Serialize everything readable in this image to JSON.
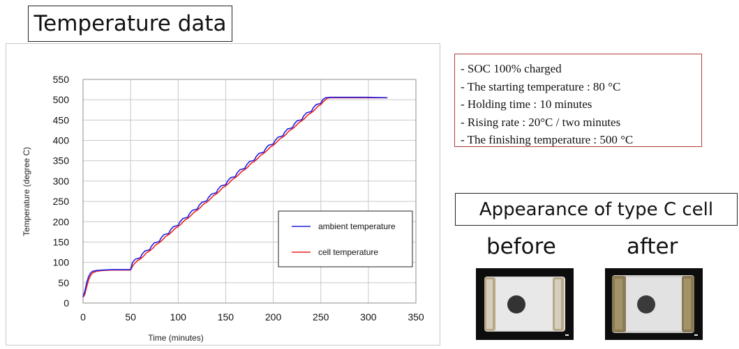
{
  "page_title": "Temperature data",
  "conditions": [
    "- SOC 100% charged",
    "- The starting temperature : 80 °C",
    "- Holding time : 10 minutes",
    "- Rising rate : 20°C / two minutes",
    "- The finishing temperature : 500 °C"
  ],
  "appearance": {
    "title": "Appearance of type C cell",
    "before_label": "before",
    "after_label": "after"
  },
  "colors": {
    "ambient": "#1f1fe0",
    "cell": "#ee2222",
    "conditions_border": "#b23a3a"
  },
  "chart_data": {
    "type": "line",
    "xlabel": "Time (minutes)",
    "ylabel": "Temperature (degree C)",
    "xlim": [
      0,
      350
    ],
    "ylim": [
      0,
      550
    ],
    "xticks": [
      0,
      50,
      100,
      150,
      200,
      250,
      300,
      350
    ],
    "yticks": [
      0,
      50,
      100,
      150,
      200,
      250,
      300,
      350,
      400,
      450,
      500,
      550
    ],
    "grid": true,
    "legend_position": "lower-right",
    "series": [
      {
        "name": "ambient temperature",
        "color": "#1f1fe0",
        "x": [
          0,
          2,
          4,
          6,
          8,
          10,
          14,
          20,
          30,
          40,
          50,
          52,
          55,
          60,
          62,
          65,
          70,
          72,
          75,
          80,
          82,
          85,
          90,
          92,
          95,
          100,
          102,
          105,
          110,
          112,
          115,
          120,
          122,
          125,
          130,
          132,
          135,
          140,
          142,
          145,
          150,
          152,
          155,
          160,
          162,
          165,
          170,
          172,
          175,
          180,
          182,
          185,
          190,
          192,
          195,
          200,
          202,
          205,
          210,
          212,
          215,
          220,
          222,
          225,
          230,
          232,
          235,
          240,
          242,
          245,
          250,
          252,
          255,
          260,
          262,
          265,
          270,
          272,
          275,
          280,
          282,
          285,
          290,
          292,
          295,
          300,
          320
        ],
        "y": [
          15,
          30,
          52,
          66,
          74,
          78,
          80,
          81,
          82,
          82,
          82,
          100,
          108,
          111,
          120,
          128,
          131,
          140,
          148,
          151,
          160,
          168,
          171,
          180,
          188,
          191,
          200,
          208,
          211,
          220,
          228,
          231,
          240,
          248,
          251,
          260,
          268,
          271,
          280,
          288,
          291,
          300,
          308,
          311,
          320,
          328,
          331,
          340,
          348,
          351,
          360,
          368,
          371,
          380,
          388,
          391,
          400,
          408,
          411,
          420,
          428,
          431,
          440,
          448,
          451,
          460,
          468,
          471,
          480,
          488,
          491,
          500,
          505,
          506,
          506,
          506,
          506,
          506,
          506,
          506,
          506,
          506,
          506,
          506,
          506,
          506,
          505
        ]
      },
      {
        "name": "cell temperature",
        "color": "#ee2222",
        "x": [
          0,
          2,
          4,
          6,
          8,
          10,
          14,
          20,
          30,
          40,
          50,
          53,
          57,
          60,
          63,
          67,
          70,
          73,
          77,
          80,
          83,
          87,
          90,
          93,
          97,
          100,
          103,
          107,
          110,
          113,
          117,
          120,
          123,
          127,
          130,
          133,
          137,
          140,
          143,
          147,
          150,
          153,
          157,
          160,
          163,
          167,
          170,
          173,
          177,
          180,
          183,
          187,
          190,
          193,
          197,
          200,
          203,
          207,
          210,
          213,
          217,
          220,
          223,
          227,
          230,
          233,
          237,
          240,
          243,
          247,
          250,
          253,
          257,
          260,
          263,
          267,
          270,
          273,
          277,
          280,
          283,
          287,
          290,
          293,
          297,
          300,
          320
        ],
        "y": [
          14,
          22,
          42,
          58,
          68,
          74,
          78,
          80,
          81,
          81,
          81,
          94,
          104,
          108,
          114,
          124,
          128,
          134,
          144,
          148,
          154,
          164,
          168,
          174,
          184,
          188,
          194,
          204,
          208,
          214,
          224,
          228,
          234,
          244,
          248,
          254,
          264,
          268,
          274,
          284,
          288,
          294,
          304,
          308,
          314,
          324,
          328,
          334,
          344,
          348,
          354,
          364,
          368,
          374,
          384,
          388,
          394,
          404,
          408,
          414,
          424,
          428,
          434,
          444,
          448,
          454,
          464,
          468,
          474,
          484,
          488,
          496,
          504,
          505,
          505,
          505,
          505,
          505,
          505,
          505,
          505,
          505,
          505,
          505,
          505,
          505,
          505
        ]
      }
    ]
  }
}
